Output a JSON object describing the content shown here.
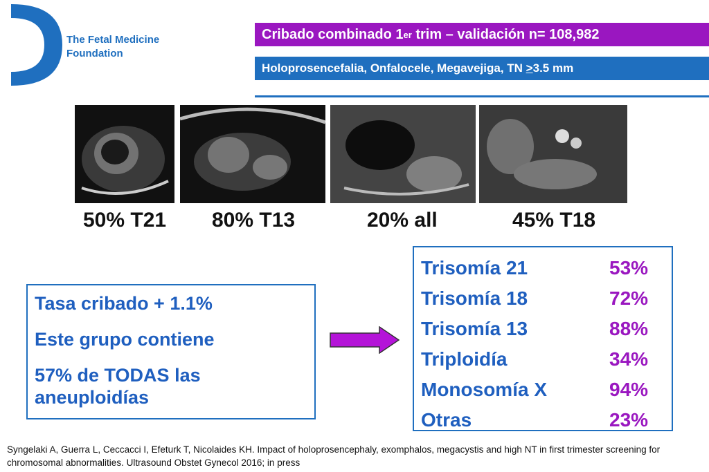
{
  "header": {
    "org_name_line1": "The Fetal Medicine",
    "org_name_line2": "Foundation",
    "banner_title_main": "Cribado combinado 1",
    "banner_title_sup": "er",
    "banner_title_rest": " trim – validación n= 108,982",
    "banner_subtitle_pre": "Holoprosencefalia, Onfalocele, Megavejiga, TN ",
    "banner_subtitle_ge": ">",
    "banner_subtitle_post": "3.5 mm"
  },
  "images": [
    {
      "caption": "50% T21"
    },
    {
      "caption": "80% T13"
    },
    {
      "caption": "20% all"
    },
    {
      "caption": "45% T18"
    }
  ],
  "summary": {
    "line1": "Tasa cribado + 1.1%",
    "line2": "Este grupo contiene",
    "line3": "57% de TODAS las aneuploidías"
  },
  "detection": [
    {
      "label": "Trisomía 21",
      "value": "53%"
    },
    {
      "label": "Trisomía 18",
      "value": "72%"
    },
    {
      "label": "Trisomía 13",
      "value": "88%"
    },
    {
      "label": "Triploidía",
      "value": "34%"
    },
    {
      "label": "Monosomía X",
      "value": "94%"
    },
    {
      "label": "Otras",
      "value": "23%"
    }
  ],
  "reference": "Syngelaki A, Guerra L, Ceccacci I, Efeturk T, Nicolaides KH. Impact of holoprosencephaly, exomphalos, megacystis and high NT in first trimester screening for chromosomal abnormalities. Ultrasound Obstet Gynecol 2016; in press",
  "colors": {
    "blue": "#1f6fbf",
    "purple": "#9a17c0"
  }
}
